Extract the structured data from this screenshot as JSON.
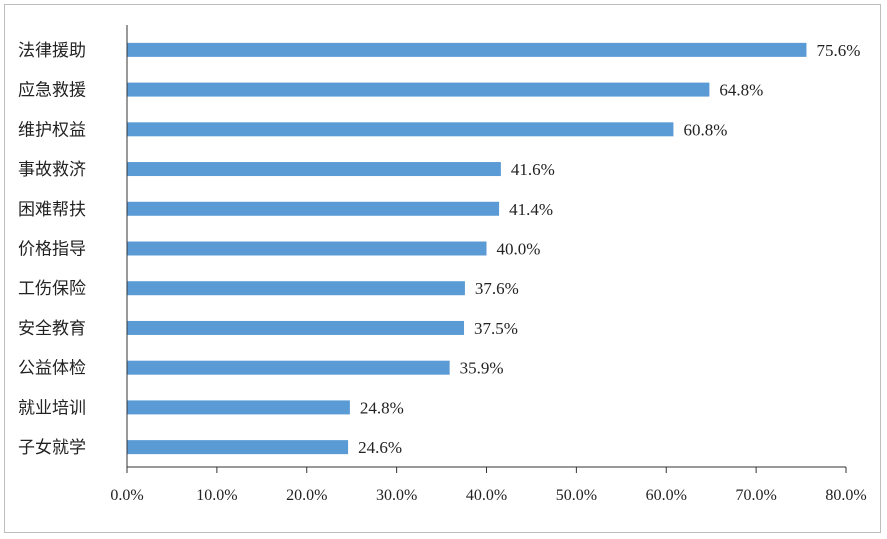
{
  "chart_data": {
    "type": "bar",
    "orientation": "horizontal",
    "categories": [
      "法律援助",
      "应急救援",
      "维护权益",
      "事故救济",
      "困难帮扶",
      "价格指导",
      "工伤保险",
      "安全教育",
      "公益体检",
      "就业培训",
      "子女就学"
    ],
    "values": [
      75.6,
      64.8,
      60.8,
      41.6,
      41.4,
      40.0,
      37.6,
      37.5,
      35.9,
      24.8,
      24.6
    ],
    "value_labels": [
      "75.6%",
      "64.8%",
      "60.8%",
      "41.6%",
      "41.4%",
      "40.0%",
      "37.6%",
      "37.5%",
      "35.9%",
      "24.8%",
      "24.6%"
    ],
    "xlim": [
      0,
      80
    ],
    "x_ticks": [
      0,
      10,
      20,
      30,
      40,
      50,
      60,
      70,
      80
    ],
    "x_tick_labels": [
      "0.0%",
      "10.0%",
      "20.0%",
      "30.0%",
      "40.0%",
      "50.0%",
      "60.0%",
      "70.0%",
      "80.0%"
    ],
    "grid": false,
    "bar_color": "#5b9bd5",
    "title": "",
    "xlabel": "",
    "ylabel": ""
  }
}
